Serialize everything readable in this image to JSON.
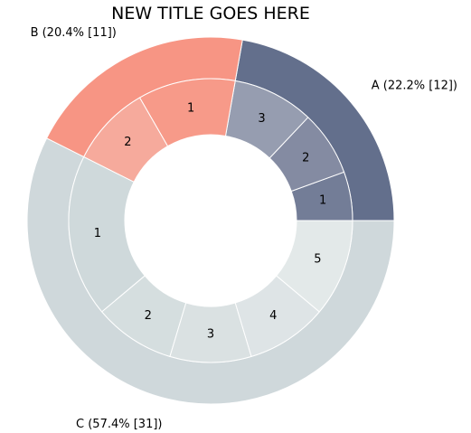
{
  "chart_data": {
    "type": "pie",
    "subtype": "nested-donut",
    "title": "NEW TITLE GOES HERE",
    "start_angle_deg": 0,
    "direction": "counterclockwise",
    "outer": [
      {
        "key": "a",
        "label": "A (22.2% [12])",
        "value": 12,
        "color": "#636f8c"
      },
      {
        "key": "b",
        "label": "B (20.4% [11])",
        "value": 11,
        "color": "#f79584"
      },
      {
        "key": "c",
        "label": "C (57.4% [31])",
        "value": 31,
        "color": "#cfd8db"
      }
    ],
    "inner": [
      {
        "key": "a1",
        "group": "A",
        "label": "1",
        "value": 3,
        "color": "#737d97"
      },
      {
        "key": "a2",
        "group": "A",
        "label": "2",
        "value": 4,
        "color": "#848ba2"
      },
      {
        "key": "a3",
        "group": "A",
        "label": "3",
        "value": 5,
        "color": "#969db0"
      },
      {
        "key": "b1",
        "group": "B",
        "label": "1",
        "value": 6,
        "color": "#f79a89"
      },
      {
        "key": "b2",
        "group": "B",
        "label": "2",
        "value": 5,
        "color": "#f6aa9c"
      },
      {
        "key": "c1",
        "group": "C",
        "label": "1",
        "value": 10,
        "color": "#cfd9db"
      },
      {
        "key": "c2",
        "group": "C",
        "label": "2",
        "value": 5,
        "color": "#d5dedf"
      },
      {
        "key": "c3",
        "group": "C",
        "label": "3",
        "value": 5,
        "color": "#dae1e2"
      },
      {
        "key": "c4",
        "group": "C",
        "label": "4",
        "value": 5,
        "color": "#dee4e6"
      },
      {
        "key": "c5",
        "group": "C",
        "label": "5",
        "value": 6,
        "color": "#e3e9e9"
      }
    ]
  }
}
